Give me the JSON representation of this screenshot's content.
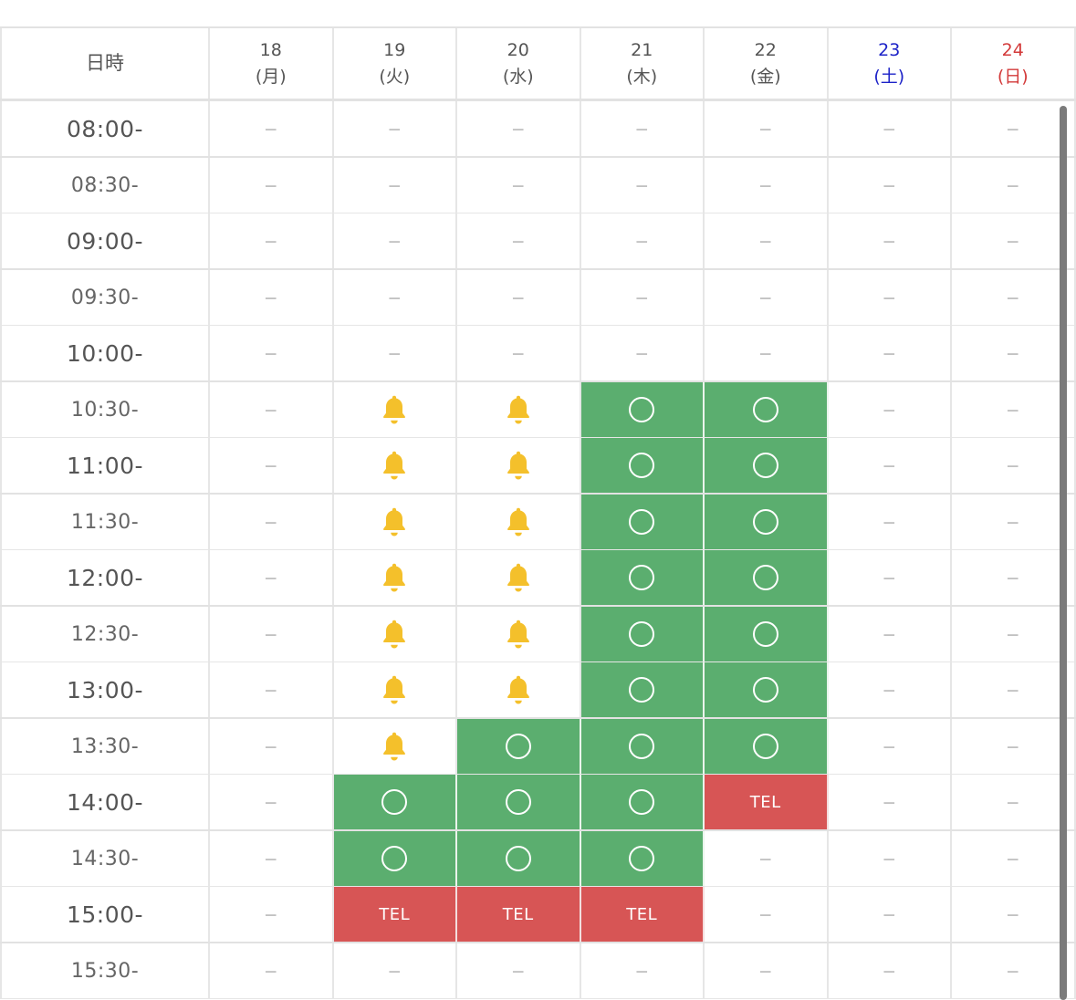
{
  "header": {
    "corner_label": "日時",
    "days": [
      {
        "date": "18",
        "weekday": "(月)",
        "type": "weekday"
      },
      {
        "date": "19",
        "weekday": "(火)",
        "type": "weekday"
      },
      {
        "date": "20",
        "weekday": "(水)",
        "type": "weekday"
      },
      {
        "date": "21",
        "weekday": "(木)",
        "type": "weekday"
      },
      {
        "date": "22",
        "weekday": "(金)",
        "type": "weekday"
      },
      {
        "date": "23",
        "weekday": "(土)",
        "type": "saturday"
      },
      {
        "date": "24",
        "weekday": "(日)",
        "type": "sunday"
      }
    ]
  },
  "legend": {
    "dash": "－",
    "tel": "TEL",
    "icons": {
      "available": "circle-icon",
      "waitlist": "bell-icon"
    }
  },
  "colors": {
    "available": "#5bae6f",
    "tel": "#d75555",
    "bell": "#f4c02b",
    "saturday": "#1d23c8",
    "sunday": "#d33a3a"
  },
  "rows": [
    {
      "time": "08:00-",
      "slots": [
        "dash",
        "dash",
        "dash",
        "dash",
        "dash",
        "dash",
        "dash"
      ]
    },
    {
      "time": "08:30-",
      "slots": [
        "dash",
        "dash",
        "dash",
        "dash",
        "dash",
        "dash",
        "dash"
      ]
    },
    {
      "time": "09:00-",
      "slots": [
        "dash",
        "dash",
        "dash",
        "dash",
        "dash",
        "dash",
        "dash"
      ]
    },
    {
      "time": "09:30-",
      "slots": [
        "dash",
        "dash",
        "dash",
        "dash",
        "dash",
        "dash",
        "dash"
      ]
    },
    {
      "time": "10:00-",
      "slots": [
        "dash",
        "dash",
        "dash",
        "dash",
        "dash",
        "dash",
        "dash"
      ]
    },
    {
      "time": "10:30-",
      "slots": [
        "dash",
        "bell",
        "bell",
        "ok",
        "ok",
        "dash",
        "dash"
      ]
    },
    {
      "time": "11:00-",
      "slots": [
        "dash",
        "bell",
        "bell",
        "ok",
        "ok",
        "dash",
        "dash"
      ]
    },
    {
      "time": "11:30-",
      "slots": [
        "dash",
        "bell",
        "bell",
        "ok",
        "ok",
        "dash",
        "dash"
      ]
    },
    {
      "time": "12:00-",
      "slots": [
        "dash",
        "bell",
        "bell",
        "ok",
        "ok",
        "dash",
        "dash"
      ]
    },
    {
      "time": "12:30-",
      "slots": [
        "dash",
        "bell",
        "bell",
        "ok",
        "ok",
        "dash",
        "dash"
      ]
    },
    {
      "time": "13:00-",
      "slots": [
        "dash",
        "bell",
        "bell",
        "ok",
        "ok",
        "dash",
        "dash"
      ]
    },
    {
      "time": "13:30-",
      "slots": [
        "dash",
        "bell",
        "ok",
        "ok",
        "ok",
        "dash",
        "dash"
      ]
    },
    {
      "time": "14:00-",
      "slots": [
        "dash",
        "ok",
        "ok",
        "ok",
        "tel",
        "dash",
        "dash"
      ]
    },
    {
      "time": "14:30-",
      "slots": [
        "dash",
        "ok",
        "ok",
        "ok",
        "dash",
        "dash",
        "dash"
      ]
    },
    {
      "time": "15:00-",
      "slots": [
        "dash",
        "tel",
        "tel",
        "tel",
        "dash",
        "dash",
        "dash"
      ]
    },
    {
      "time": "15:30-",
      "slots": [
        "dash",
        "dash",
        "dash",
        "dash",
        "dash",
        "dash",
        "dash"
      ]
    }
  ]
}
